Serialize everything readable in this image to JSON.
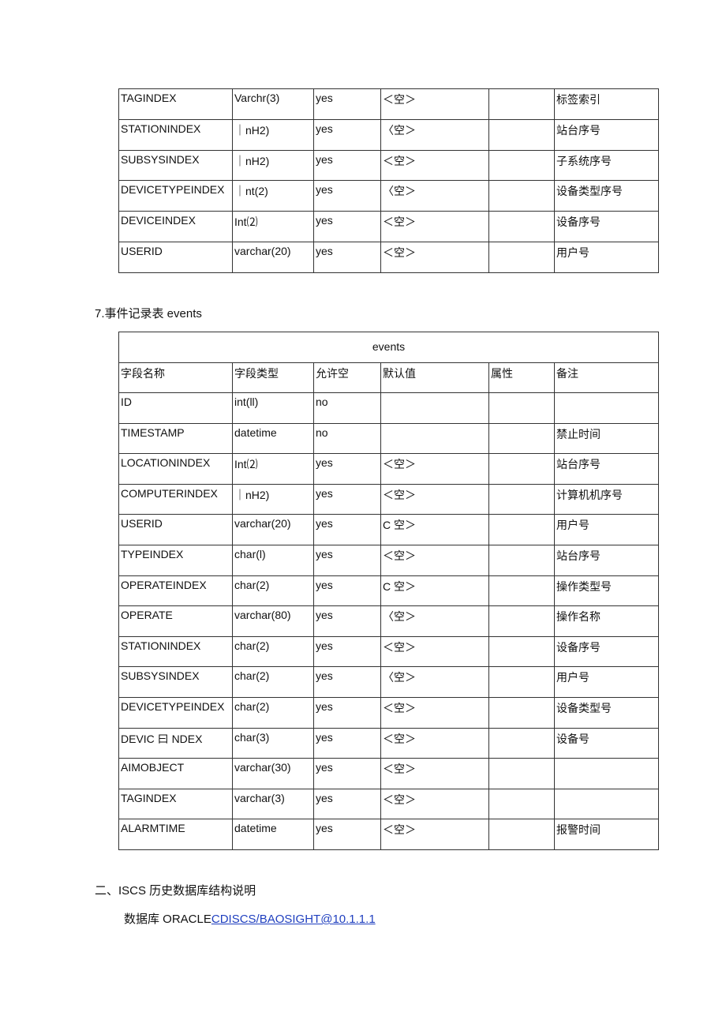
{
  "table1": {
    "rows": [
      [
        "TAGINDEX",
        "Varchr(3)",
        "yes",
        "＜空＞",
        null,
        "标签索引"
      ],
      [
        "STATIONINDEX",
        "｜nH2)",
        "yes",
        "〈空＞",
        null,
        "站台序号"
      ],
      [
        "SUBSYSINDEX",
        "｜nH2)",
        "yes",
        "＜空＞",
        null,
        "子系统序号"
      ],
      [
        "DEVICETYPEINDEX",
        "｜nt(2)",
        "yes",
        "〈空＞",
        null,
        "设备类型序号"
      ],
      [
        "DEVICEINDEX",
        "Int⑵",
        "yes",
        "＜空＞",
        null,
        "设备序号"
      ],
      [
        "USERID",
        "varchar(20)",
        "yes",
        "＜空＞",
        null,
        "用户号"
      ]
    ]
  },
  "heading": "7.事件记录表 events",
  "table2": {
    "title": "events",
    "header": [
      "字段名称",
      "字段类型",
      "允许空",
      "默认值",
      "属性",
      "备注"
    ],
    "rows": [
      [
        "ID",
        "int(ll)",
        "no",
        null,
        null,
        null
      ],
      [
        "TIMESTAMP",
        "datetime",
        "no",
        null,
        null,
        "禁止时间"
      ],
      [
        "LOCATIONINDEX",
        "Int⑵",
        "yes",
        "＜空＞",
        null,
        "站台序号"
      ],
      [
        "COMPUTERINDEX",
        "｜nH2)",
        "yes",
        "＜空＞",
        null,
        "计算机机序号"
      ],
      [
        "USERID",
        "varchar(20)",
        "yes",
        "C 空＞",
        null,
        "用户号"
      ],
      [
        "TYPEINDEX",
        "char(l)",
        "yes",
        "＜空＞",
        null,
        "站台序号"
      ],
      [
        "OPERATEINDEX",
        "char(2)",
        "yes",
        "C 空＞",
        null,
        "操作类型号"
      ],
      [
        "OPERATE",
        "varchar(80)",
        "yes",
        "〈空＞",
        null,
        "操作名称"
      ],
      [
        "STATIONINDEX",
        "char(2)",
        "yes",
        "＜空＞",
        null,
        "设备序号"
      ],
      [
        "SUBSYSINDEX",
        "char(2)",
        "yes",
        "〈空＞",
        null,
        "用户号"
      ],
      [
        "DEVICETYPEINDEX",
        "char(2)",
        "yes",
        "＜空＞",
        null,
        "设备类型号"
      ],
      [
        "DEVIC 曰 NDEX",
        "char(3)",
        "yes",
        "＜空＞",
        null,
        "设备号"
      ],
      [
        "AIMOBJECT",
        "varchar(30)",
        "yes",
        "＜空＞",
        null,
        null
      ],
      [
        "TAGINDEX",
        "varchar(3)",
        "yes",
        "＜空＞",
        null,
        null
      ],
      [
        "ALARMTIME",
        "datetime",
        "yes",
        "＜空＞",
        null,
        "报警时间"
      ]
    ]
  },
  "section": "二、ISCS 历史数据库结构说明",
  "db_line": {
    "prefix": "数据库 ORACLE",
    "link": "CDISCS/BAOSIGHT@10.1.1.1"
  }
}
